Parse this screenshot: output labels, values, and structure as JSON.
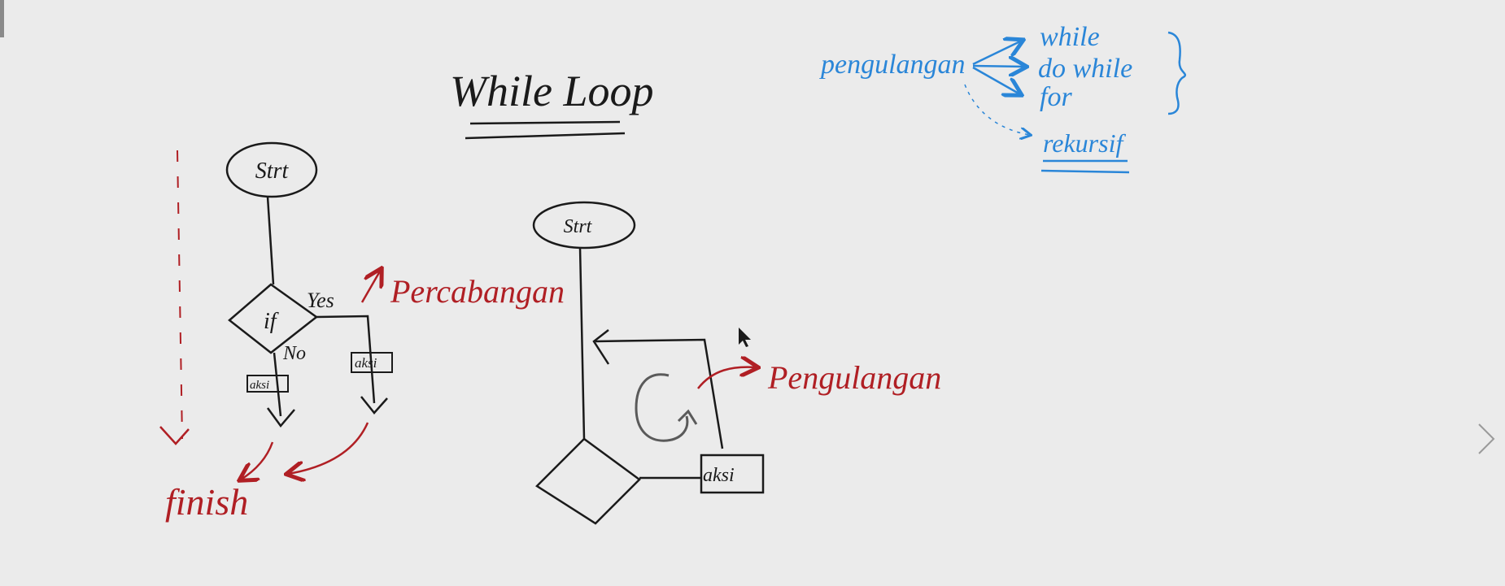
{
  "whiteboard": {
    "title": "While Loop",
    "flowchart_left": {
      "start": "Strt",
      "decision": "if",
      "yes": "Yes",
      "no": "No",
      "action_no": "aksi",
      "action_yes": "aksi",
      "end": "finish",
      "annotation": "Percabangan"
    },
    "flowchart_right": {
      "start": "Strt",
      "action": "aksi",
      "annotation": "Pengulangan"
    },
    "mindmap": {
      "root": "pengulangan",
      "items": [
        "while",
        "do while",
        "for"
      ],
      "extra": "rekursif"
    }
  },
  "colors": {
    "background": "#ebebeb",
    "ink_black": "#1a1a1a",
    "ink_red": "#b01f24",
    "ink_blue": "#2a86d8",
    "ink_gray": "#5a5a5a"
  },
  "icons": {
    "next": "chevron-right-icon",
    "cursor": "mouse-pointer-icon",
    "loop": "loop-arrow-icon"
  }
}
